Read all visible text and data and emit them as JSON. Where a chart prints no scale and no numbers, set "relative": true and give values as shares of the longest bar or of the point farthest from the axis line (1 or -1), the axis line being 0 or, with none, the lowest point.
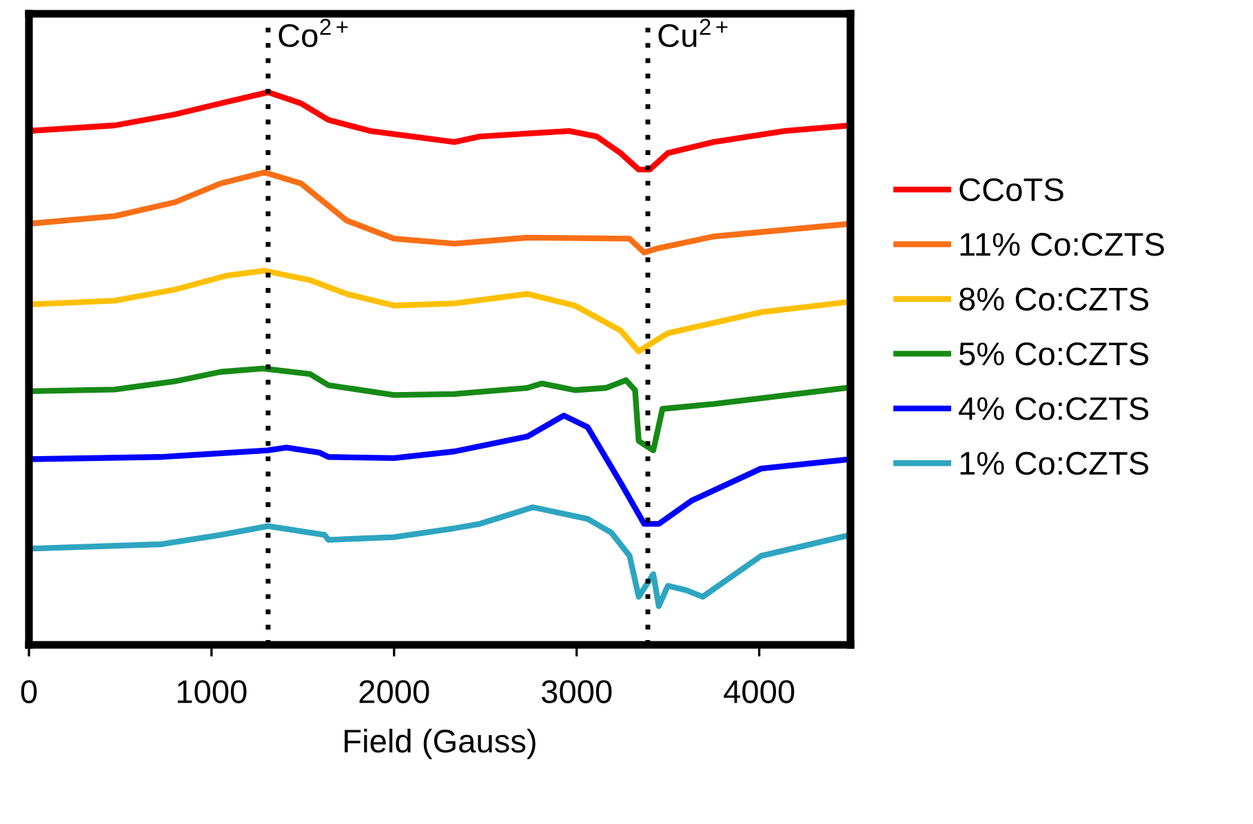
{
  "chart_data": {
    "type": "line",
    "xlabel": "Field (Gauss)",
    "relative": true,
    "xlim": [
      0,
      4500
    ],
    "xticks": [
      0,
      1000,
      2000,
      3000,
      4000
    ],
    "tick_labels": "x",
    "grid": false,
    "legend": "right",
    "marker": "none",
    "line_style": "solid",
    "ref_lines": [
      {
        "axis": "x",
        "value": 1310,
        "label": "Co$^{2+}$",
        "color": "#000000",
        "line_style": "dotted"
      },
      {
        "axis": "x",
        "value": 3390,
        "label": "Cu$^{2+}$",
        "color": "#000000",
        "line_style": "dotted"
      }
    ],
    "series": [
      {
        "name": "CCoTS",
        "color": "#ff0000",
        "x": [
          0,
          470,
          800,
          1050,
          1310,
          1490,
          1640,
          1870,
          2330,
          2470,
          2960,
          3110,
          3240,
          3340,
          3400,
          3500,
          3750,
          4140,
          4500
        ],
        "values": [
          0.93,
          0.94,
          0.96,
          0.98,
          1.0,
          0.98,
          0.95,
          0.93,
          0.91,
          0.92,
          0.93,
          0.92,
          0.89,
          0.86,
          0.86,
          0.89,
          0.91,
          0.93,
          0.94
        ]
      },
      {
        "name": "11% Co:CZTS",
        "color": "#f96f16",
        "x": [
          0,
          470,
          800,
          1050,
          1290,
          1490,
          1740,
          2000,
          2330,
          2730,
          3290,
          3370,
          3450,
          3750,
          4500
        ],
        "values": [
          0.762,
          0.776,
          0.801,
          0.835,
          0.855,
          0.835,
          0.768,
          0.735,
          0.726,
          0.737,
          0.735,
          0.71,
          0.718,
          0.739,
          0.762
        ]
      },
      {
        "name": "8% Co:CZTS",
        "color": "#ffc000",
        "x": [
          0,
          470,
          800,
          1080,
          1290,
          1540,
          1740,
          2000,
          2330,
          2730,
          2990,
          3240,
          3340,
          3420,
          3500,
          4010,
          4500
        ],
        "values": [
          0.616,
          0.623,
          0.643,
          0.668,
          0.677,
          0.66,
          0.635,
          0.614,
          0.618,
          0.635,
          0.614,
          0.569,
          0.531,
          0.548,
          0.564,
          0.602,
          0.621
        ]
      },
      {
        "name": "5% Co:CZTS",
        "color": "#168a16",
        "x": [
          0,
          470,
          800,
          1050,
          1280,
          1540,
          1640,
          2000,
          2330,
          2730,
          2810,
          2990,
          3160,
          3270,
          3320,
          3340,
          3420,
          3470,
          3750,
          4500
        ],
        "values": [
          0.459,
          0.462,
          0.477,
          0.494,
          0.5,
          0.49,
          0.47,
          0.452,
          0.454,
          0.465,
          0.473,
          0.461,
          0.465,
          0.479,
          0.461,
          0.369,
          0.352,
          0.427,
          0.436,
          0.466
        ]
      },
      {
        "name": "4% Co:CZTS",
        "color": "#0000ff",
        "x": [
          0,
          720,
          1310,
          1410,
          1590,
          1640,
          2000,
          2330,
          2730,
          2930,
          3060,
          3240,
          3370,
          3450,
          3630,
          4010,
          4500
        ],
        "values": [
          0.336,
          0.34,
          0.352,
          0.357,
          0.348,
          0.34,
          0.338,
          0.35,
          0.377,
          0.415,
          0.394,
          0.294,
          0.219,
          0.219,
          0.261,
          0.319,
          0.336
        ]
      },
      {
        "name": "1% Co:CZTS",
        "color": "#2ea5c0",
        "x": [
          0,
          720,
          1050,
          1310,
          1540,
          1620,
          1640,
          2000,
          2330,
          2470,
          2760,
          3060,
          3190,
          3290,
          3340,
          3420,
          3450,
          3500,
          3600,
          3690,
          4010,
          4500
        ],
        "values": [
          0.174,
          0.182,
          0.199,
          0.215,
          0.203,
          0.199,
          0.19,
          0.195,
          0.211,
          0.219,
          0.249,
          0.228,
          0.203,
          0.161,
          0.087,
          0.128,
          0.07,
          0.107,
          0.099,
          0.087,
          0.161,
          0.199
        ]
      }
    ]
  }
}
